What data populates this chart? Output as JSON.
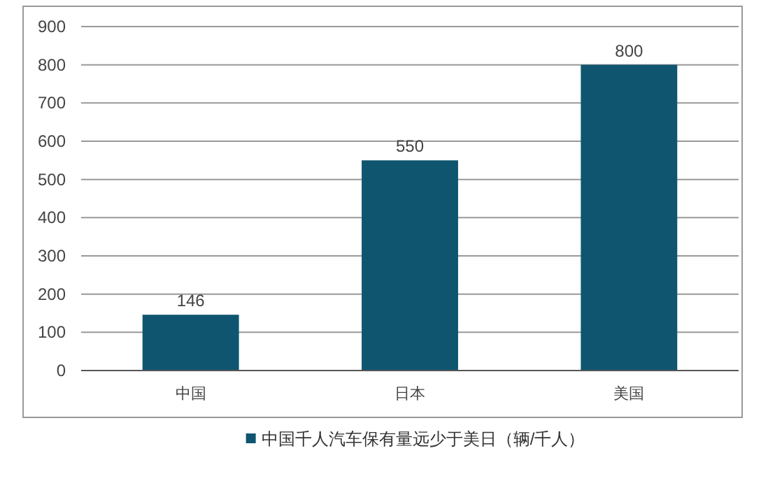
{
  "chart_data": {
    "type": "bar",
    "categories": [
      "中国",
      "日本",
      "美国"
    ],
    "series": [
      {
        "name": "中国千人汽车保有量远少于美日（辆/千人）",
        "color": "#0f5570",
        "values": [
          146,
          550,
          800
        ]
      }
    ],
    "ylim": [
      0,
      900
    ],
    "yticks": [
      0,
      100,
      200,
      300,
      400,
      500,
      600,
      700,
      800,
      900
    ],
    "grid": "y",
    "data_labels": true,
    "legend": "bottom"
  }
}
